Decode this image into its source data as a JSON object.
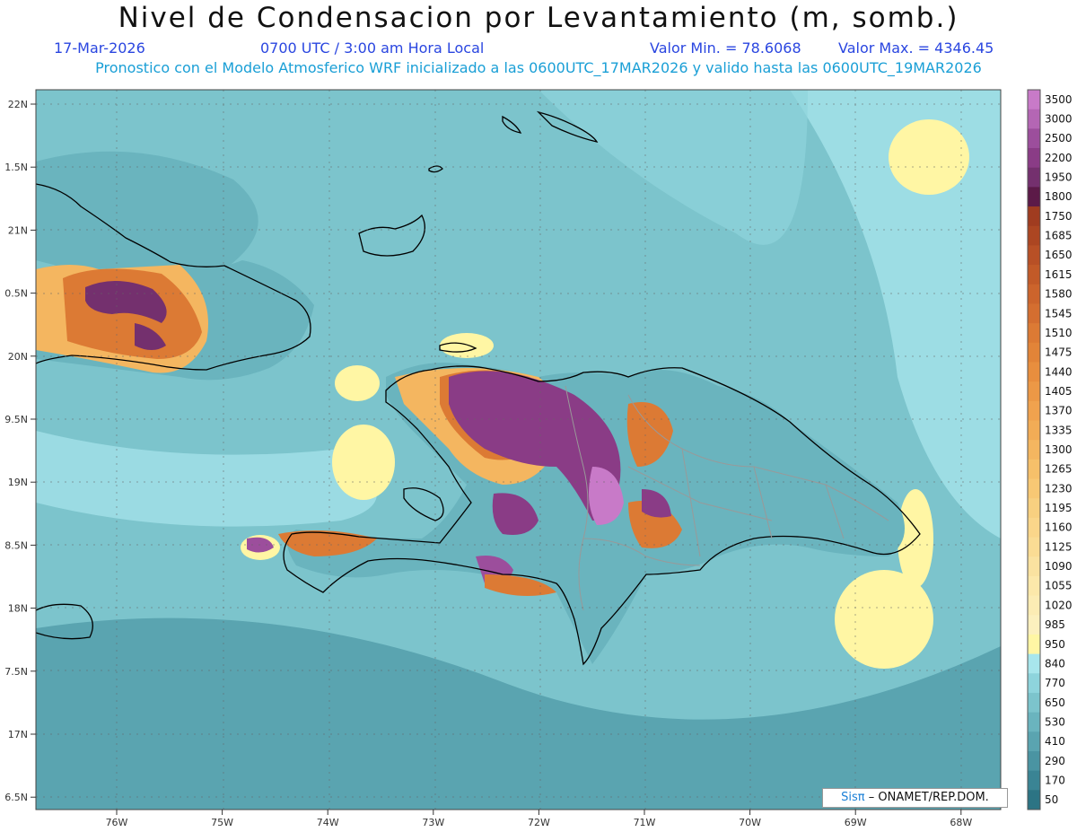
{
  "title": "Nivel de Condensacion por Levantamiento (m, somb.)",
  "date": "17-Mar-2026",
  "time": "0700 UTC / 3:00 am Hora Local",
  "min_label": "Valor Min. = 78.6068",
  "max_label": "Valor Max. = 4346.45",
  "forecast_line": "Pronostico con el Modelo Atmosferico WRF inicializado a las 0600UTC_17MAR2026 y valido hasta las  0600UTC_19MAR2026",
  "lat_ticks": [
    "22N",
    "1.5N",
    "21N",
    "0.5N",
    "20N",
    "9.5N",
    "19N",
    "8.5N",
    "18N",
    "7.5N",
    "17N",
    "6.5N"
  ],
  "lon_ticks": [
    "76W",
    "75W",
    "74W",
    "73W",
    "72W",
    "71W",
    "70W",
    "69W",
    "68W"
  ],
  "colorbar": {
    "levels": [
      "3500",
      "3000",
      "2500",
      "2200",
      "1950",
      "1800",
      "1750",
      "1685",
      "1650",
      "1615",
      "1580",
      "1545",
      "1510",
      "1475",
      "1440",
      "1405",
      "1370",
      "1335",
      "1300",
      "1265",
      "1230",
      "1195",
      "1160",
      "1125",
      "1090",
      "1055",
      "1020",
      "985",
      "950",
      "840",
      "770",
      "650",
      "530",
      "410",
      "290",
      "170",
      "50"
    ],
    "colors": [
      "#c87ac8",
      "#b466b4",
      "#9c4e9c",
      "#8a3c86",
      "#74306e",
      "#5c1a48",
      "#a03c20",
      "#ac4622",
      "#b85026",
      "#c25a28",
      "#cc642c",
      "#d46e30",
      "#dc7a34",
      "#e28438",
      "#e88e3e",
      "#ec9846",
      "#f0a24e",
      "#f2ac56",
      "#f4b660",
      "#f6c06a",
      "#f8c874",
      "#f8d080",
      "#fad68a",
      "#fadc94",
      "#fae2a0",
      "#fce8aa",
      "#fcecb4",
      "#fcf0be",
      "#fff6a4",
      "#a8e6ec",
      "#8ed4dc",
      "#7cc4cc",
      "#6ab4be",
      "#5aa4b0",
      "#4a94a2",
      "#3a8494",
      "#2c7484"
    ]
  },
  "colors": {
    "sea": "#7cc4cc",
    "deep_sea": "#5aa4b0",
    "light_sea": "#a8e6ec",
    "yellow": "#fff6a4",
    "orange": "#dc7a34",
    "purple": "#8a3c86",
    "light_purple": "#c87ac8"
  },
  "credit": {
    "brand": "Sisπ",
    "text": "– ONAMET/REP.DOM."
  }
}
